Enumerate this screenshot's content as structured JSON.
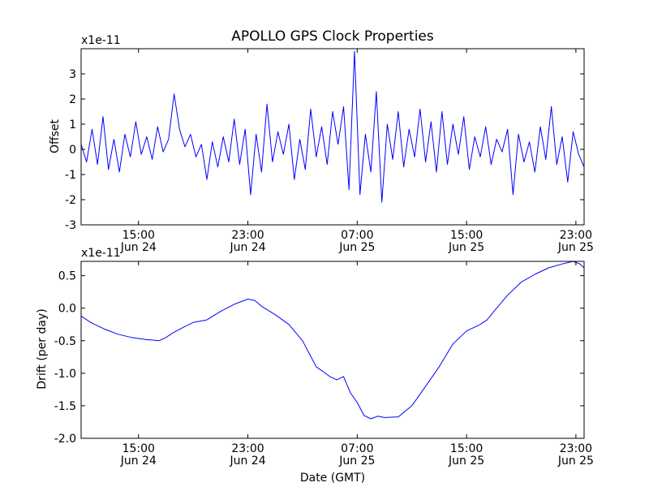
{
  "chart_data": [
    {
      "type": "line",
      "title": "APOLLO GPS Clock Properties",
      "ylabel": "Offset",
      "xlabel": "",
      "scale_label": "x1e-11",
      "color": "#0000ff",
      "ylim": [
        -3,
        4
      ],
      "xlim": [
        10.8,
        47.6
      ],
      "yticks": [
        "-3",
        "-2",
        "-1",
        "0",
        "1",
        "2",
        "3"
      ],
      "ytick_values": [
        -3,
        -2,
        -1,
        0,
        1,
        2,
        3
      ],
      "xticks": [
        {
          "x": 15,
          "time": "15:00",
          "date": "Jun 24"
        },
        {
          "x": 23,
          "time": "23:00",
          "date": "Jun 24"
        },
        {
          "x": 31,
          "time": "07:00",
          "date": "Jun 25"
        },
        {
          "x": 39,
          "time": "15:00",
          "date": "Jun 25"
        },
        {
          "x": 47,
          "time": "23:00",
          "date": "Jun 25"
        }
      ],
      "series": [
        {
          "name": "Offset",
          "x": [
            10.8,
            11.2,
            11.6,
            12.0,
            12.4,
            12.8,
            13.2,
            13.6,
            14.0,
            14.4,
            14.8,
            15.2,
            15.6,
            16.0,
            16.4,
            16.8,
            17.2,
            17.6,
            18.0,
            18.4,
            18.8,
            19.2,
            19.6,
            20.0,
            20.4,
            20.8,
            21.2,
            21.6,
            22.0,
            22.4,
            22.8,
            23.2,
            23.6,
            24.0,
            24.4,
            24.8,
            25.2,
            25.6,
            26.0,
            26.4,
            26.8,
            27.2,
            27.6,
            28.0,
            28.4,
            28.8,
            29.2,
            29.6,
            30.0,
            30.4,
            30.8,
            31.2,
            31.6,
            32.0,
            32.4,
            32.8,
            33.2,
            33.6,
            34.0,
            34.4,
            34.8,
            35.2,
            35.6,
            36.0,
            36.4,
            36.8,
            37.2,
            37.6,
            38.0,
            38.4,
            38.8,
            39.2,
            39.6,
            40.0,
            40.4,
            40.8,
            41.2,
            41.6,
            42.0,
            42.4,
            42.8,
            43.2,
            43.6,
            44.0,
            44.4,
            44.8,
            45.2,
            45.6,
            46.0,
            46.4,
            46.8,
            47.2,
            47.6
          ],
          "y": [
            0.2,
            -0.5,
            0.8,
            -0.6,
            1.3,
            -0.8,
            0.4,
            -0.9,
            0.6,
            -0.3,
            1.1,
            -0.2,
            0.5,
            -0.4,
            0.9,
            -0.1,
            0.4,
            2.2,
            0.8,
            0.1,
            0.6,
            -0.3,
            0.2,
            -1.2,
            0.3,
            -0.7,
            0.5,
            -0.5,
            1.2,
            -0.6,
            0.8,
            -1.8,
            0.6,
            -0.9,
            1.8,
            -0.5,
            0.7,
            -0.2,
            1.0,
            -1.2,
            0.4,
            -0.8,
            1.6,
            -0.3,
            0.9,
            -0.6,
            1.5,
            0.2,
            1.7,
            -1.6,
            3.9,
            -1.8,
            0.6,
            -0.9,
            2.3,
            -2.1,
            1.0,
            -0.4,
            1.5,
            -0.7,
            0.8,
            -0.3,
            1.6,
            -0.5,
            1.1,
            -0.9,
            1.5,
            -0.6,
            1.0,
            -0.2,
            1.3,
            -0.8,
            0.5,
            -0.3,
            0.9,
            -0.6,
            0.4,
            -0.1,
            0.8,
            -1.8,
            0.6,
            -0.5,
            0.3,
            -0.9,
            0.9,
            -0.4,
            1.7,
            -0.6,
            0.5,
            -1.3,
            0.7,
            -0.2,
            -0.7
          ]
        }
      ]
    },
    {
      "type": "line",
      "title": "",
      "ylabel": "Drift (per day)",
      "xlabel": "Date (GMT)",
      "scale_label": "x1e-11",
      "color": "#0000ff",
      "ylim": [
        -2.0,
        0.72
      ],
      "xlim": [
        10.8,
        47.6
      ],
      "yticks": [
        "-2.0",
        "-1.5",
        "-1.0",
        "-0.5",
        "0.0",
        "0.5"
      ],
      "ytick_values": [
        -2.0,
        -1.5,
        -1.0,
        -0.5,
        0.0,
        0.5
      ],
      "xticks": [
        {
          "x": 15,
          "time": "15:00",
          "date": "Jun 24"
        },
        {
          "x": 23,
          "time": "23:00",
          "date": "Jun 24"
        },
        {
          "x": 31,
          "time": "07:00",
          "date": "Jun 25"
        },
        {
          "x": 39,
          "time": "15:00",
          "date": "Jun 25"
        },
        {
          "x": 47,
          "time": "23:00",
          "date": "Jun 25"
        }
      ],
      "series": [
        {
          "name": "Drift",
          "x": [
            10.8,
            11.5,
            12.5,
            13.5,
            14.5,
            15.5,
            16.5,
            17.0,
            17.5,
            18.5,
            19.0,
            20.0,
            21.0,
            22.0,
            23.0,
            23.5,
            24.0,
            25.0,
            26.0,
            27.0,
            28.0,
            29.0,
            29.5,
            30.0,
            30.5,
            31.0,
            31.5,
            32.0,
            32.5,
            33.0,
            34.0,
            35.0,
            36.0,
            37.0,
            38.0,
            39.0,
            40.0,
            40.5,
            41.0,
            42.0,
            43.0,
            44.0,
            45.0,
            46.0,
            46.8,
            47.3,
            47.6
          ],
          "y": [
            -0.12,
            -0.22,
            -0.32,
            -0.4,
            -0.45,
            -0.48,
            -0.5,
            -0.45,
            -0.38,
            -0.27,
            -0.22,
            -0.18,
            -0.05,
            0.06,
            0.14,
            0.12,
            0.03,
            -0.1,
            -0.25,
            -0.5,
            -0.9,
            -1.05,
            -1.1,
            -1.05,
            -1.3,
            -1.45,
            -1.65,
            -1.7,
            -1.66,
            -1.68,
            -1.67,
            -1.5,
            -1.2,
            -0.9,
            -0.55,
            -0.35,
            -0.25,
            -0.18,
            -0.05,
            0.2,
            0.4,
            0.52,
            0.62,
            0.68,
            0.72,
            0.68,
            0.62
          ]
        }
      ]
    }
  ]
}
